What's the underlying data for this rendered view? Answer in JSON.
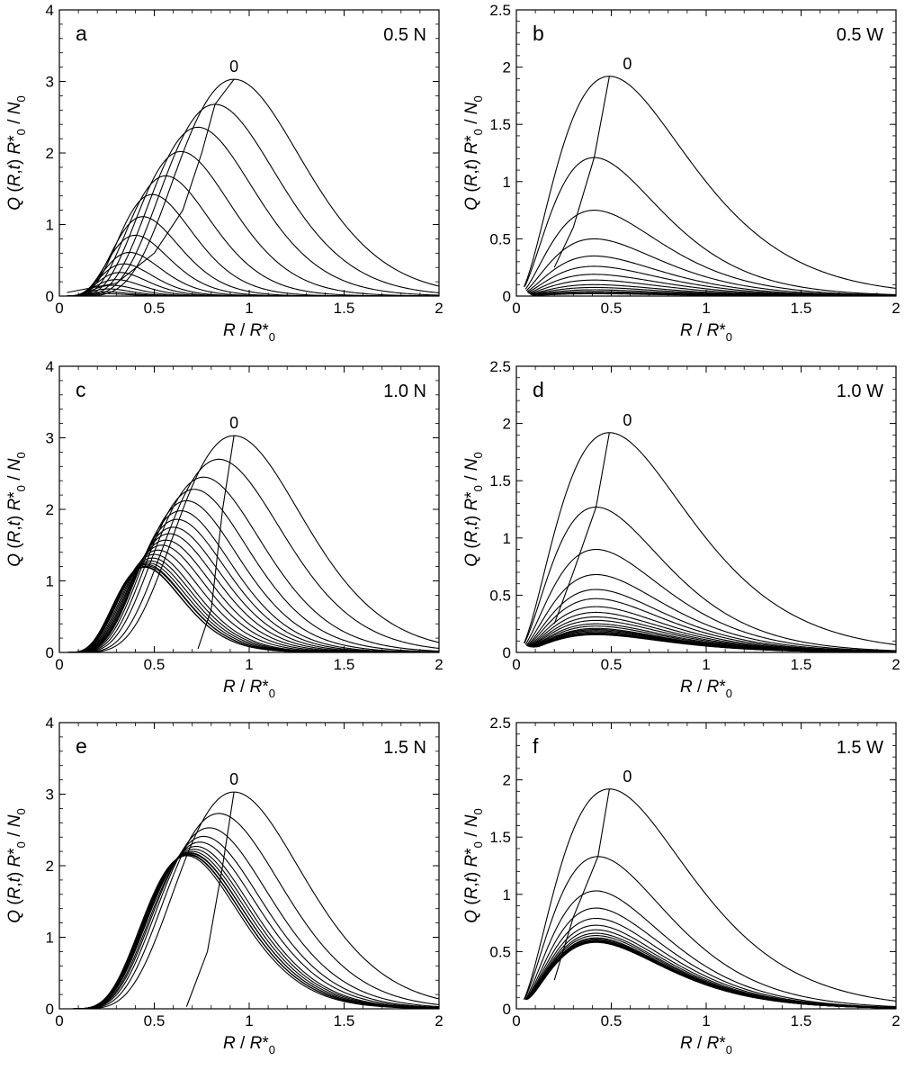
{
  "figure": {
    "x_axis_label": {
      "italic1": "R",
      "sep": " / ",
      "italic2": "R",
      "star": "*",
      "sub": "0"
    },
    "y_axis_label": {
      "Q": "Q",
      "open": " (",
      "R": "R",
      "comma": ",",
      "t": "t",
      "close": ") ",
      "Rstar": "R",
      "star": "*",
      "sub0": "0",
      "slash": " / ",
      "N": "N",
      "subN": "0"
    },
    "first_curve_label": "0"
  },
  "chart_data": [
    {
      "id": "a",
      "letter": "a",
      "condition": "0.5 N",
      "type": "line",
      "family": "N",
      "xlim": [
        0,
        2
      ],
      "ylim": [
        0,
        4
      ],
      "x_ticks": [
        0,
        0.5,
        1,
        1.5,
        2
      ],
      "x_tick_labels": [
        "0",
        "0.5",
        "1",
        "1.5",
        "2"
      ],
      "y_ticks": [
        0,
        1,
        2,
        3,
        4
      ],
      "y_tick_labels": [
        "0",
        "1",
        "2",
        "3",
        "4"
      ],
      "series_peaks": [
        {
          "peak_x": 0.92,
          "peak_y": 3.03
        },
        {
          "peak_x": 0.82,
          "peak_y": 2.68
        },
        {
          "peak_x": 0.73,
          "peak_y": 2.36
        },
        {
          "peak_x": 0.64,
          "peak_y": 2.02
        },
        {
          "peak_x": 0.56,
          "peak_y": 1.68
        },
        {
          "peak_x": 0.49,
          "peak_y": 1.42
        },
        {
          "peak_x": 0.44,
          "peak_y": 1.11
        },
        {
          "peak_x": 0.4,
          "peak_y": 0.85
        },
        {
          "peak_x": 0.37,
          "peak_y": 0.61
        },
        {
          "peak_x": 0.34,
          "peak_y": 0.45
        },
        {
          "peak_x": 0.32,
          "peak_y": 0.33
        },
        {
          "peak_x": 0.3,
          "peak_y": 0.23
        },
        {
          "peak_x": 0.28,
          "peak_y": 0.15
        },
        {
          "peak_x": 0.26,
          "peak_y": 0.1
        },
        {
          "peak_x": 0.25,
          "peak_y": 0.06
        },
        {
          "peak_x": 0.24,
          "peak_y": 0.035
        }
      ],
      "envelope": [
        [
          0.04,
          0.05
        ],
        [
          0.3,
          0.18
        ],
        [
          0.5,
          0.6
        ],
        [
          0.65,
          1.2
        ],
        [
          0.75,
          2.0
        ],
        [
          0.82,
          2.68
        ],
        [
          0.92,
          3.03
        ]
      ]
    },
    {
      "id": "b",
      "letter": "b",
      "condition": "0.5 W",
      "type": "line",
      "family": "W",
      "xlim": [
        0,
        2
      ],
      "ylim": [
        0,
        2.5
      ],
      "x_ticks": [
        0,
        0.5,
        1,
        1.5,
        2
      ],
      "x_tick_labels": [
        "0",
        "0.5",
        "1",
        "1.5",
        "2"
      ],
      "y_ticks": [
        0,
        0.5,
        1,
        1.5,
        2,
        2.5
      ],
      "y_tick_labels": [
        "0",
        "0.5",
        "1",
        "1.5",
        "2",
        "2.5"
      ],
      "series_peaks": [
        {
          "peak_x": 0.49,
          "peak_y": 1.92
        },
        {
          "peak_x": 0.41,
          "peak_y": 1.21
        },
        {
          "peak_x": 0.41,
          "peak_y": 0.75
        },
        {
          "peak_x": 0.41,
          "peak_y": 0.5
        },
        {
          "peak_x": 0.41,
          "peak_y": 0.35
        },
        {
          "peak_x": 0.41,
          "peak_y": 0.26
        },
        {
          "peak_x": 0.41,
          "peak_y": 0.19
        },
        {
          "peak_x": 0.41,
          "peak_y": 0.14
        },
        {
          "peak_x": 0.41,
          "peak_y": 0.1
        },
        {
          "peak_x": 0.41,
          "peak_y": 0.075
        },
        {
          "peak_x": 0.41,
          "peak_y": 0.055
        },
        {
          "peak_x": 0.41,
          "peak_y": 0.04
        },
        {
          "peak_x": 0.41,
          "peak_y": 0.03
        },
        {
          "peak_x": 0.41,
          "peak_y": 0.02
        }
      ],
      "envelope": [
        [
          0.2,
          0.25
        ],
        [
          0.3,
          0.6
        ],
        [
          0.41,
          1.21
        ],
        [
          0.49,
          1.92
        ]
      ]
    },
    {
      "id": "c",
      "letter": "c",
      "condition": "1.0 N",
      "type": "line",
      "family": "N",
      "xlim": [
        0,
        2
      ],
      "ylim": [
        0,
        4
      ],
      "x_ticks": [
        0,
        0.5,
        1,
        1.5,
        2
      ],
      "x_tick_labels": [
        "0",
        "0.5",
        "1",
        "1.5",
        "2"
      ],
      "y_ticks": [
        0,
        1,
        2,
        3,
        4
      ],
      "y_tick_labels": [
        "0",
        "1",
        "2",
        "3",
        "4"
      ],
      "series_peaks": [
        {
          "peak_x": 0.92,
          "peak_y": 3.03
        },
        {
          "peak_x": 0.84,
          "peak_y": 2.7
        },
        {
          "peak_x": 0.76,
          "peak_y": 2.45
        },
        {
          "peak_x": 0.71,
          "peak_y": 2.28
        },
        {
          "peak_x": 0.67,
          "peak_y": 2.12
        },
        {
          "peak_x": 0.64,
          "peak_y": 1.98
        },
        {
          "peak_x": 0.62,
          "peak_y": 1.86
        },
        {
          "peak_x": 0.6,
          "peak_y": 1.75
        },
        {
          "peak_x": 0.58,
          "peak_y": 1.66
        },
        {
          "peak_x": 0.56,
          "peak_y": 1.57
        },
        {
          "peak_x": 0.54,
          "peak_y": 1.5
        },
        {
          "peak_x": 0.52,
          "peak_y": 1.43
        },
        {
          "peak_x": 0.5,
          "peak_y": 1.37
        },
        {
          "peak_x": 0.49,
          "peak_y": 1.32
        },
        {
          "peak_x": 0.48,
          "peak_y": 1.28
        },
        {
          "peak_x": 0.47,
          "peak_y": 1.25
        },
        {
          "peak_x": 0.46,
          "peak_y": 1.23
        },
        {
          "peak_x": 0.46,
          "peak_y": 1.21
        },
        {
          "peak_x": 0.45,
          "peak_y": 1.2
        },
        {
          "peak_x": 0.45,
          "peak_y": 1.19
        }
      ],
      "envelope": [
        [
          0.73,
          0.05
        ],
        [
          0.8,
          0.6
        ],
        [
          0.86,
          2.0
        ],
        [
          0.92,
          3.03
        ]
      ]
    },
    {
      "id": "d",
      "letter": "d",
      "condition": "1.0 W",
      "type": "line",
      "family": "W",
      "xlim": [
        0,
        2
      ],
      "ylim": [
        0,
        2.5
      ],
      "x_ticks": [
        0,
        0.5,
        1,
        1.5,
        2
      ],
      "x_tick_labels": [
        "0",
        "0.5",
        "1",
        "1.5",
        "2"
      ],
      "y_ticks": [
        0,
        0.5,
        1,
        1.5,
        2,
        2.5
      ],
      "y_tick_labels": [
        "0",
        "0.5",
        "1",
        "1.5",
        "2",
        "2.5"
      ],
      "series_peaks": [
        {
          "peak_x": 0.49,
          "peak_y": 1.92
        },
        {
          "peak_x": 0.42,
          "peak_y": 1.27
        },
        {
          "peak_x": 0.42,
          "peak_y": 0.9
        },
        {
          "peak_x": 0.42,
          "peak_y": 0.68
        },
        {
          "peak_x": 0.42,
          "peak_y": 0.55
        },
        {
          "peak_x": 0.42,
          "peak_y": 0.47
        },
        {
          "peak_x": 0.42,
          "peak_y": 0.4
        },
        {
          "peak_x": 0.42,
          "peak_y": 0.35
        },
        {
          "peak_x": 0.42,
          "peak_y": 0.31
        },
        {
          "peak_x": 0.42,
          "peak_y": 0.28
        },
        {
          "peak_x": 0.42,
          "peak_y": 0.25
        },
        {
          "peak_x": 0.42,
          "peak_y": 0.23
        },
        {
          "peak_x": 0.42,
          "peak_y": 0.21
        },
        {
          "peak_x": 0.42,
          "peak_y": 0.2
        },
        {
          "peak_x": 0.42,
          "peak_y": 0.19
        },
        {
          "peak_x": 0.42,
          "peak_y": 0.18
        },
        {
          "peak_x": 0.42,
          "peak_y": 0.17
        },
        {
          "peak_x": 0.42,
          "peak_y": 0.165
        },
        {
          "peak_x": 0.42,
          "peak_y": 0.16
        },
        {
          "peak_x": 0.42,
          "peak_y": 0.155
        }
      ],
      "envelope": [
        [
          0.2,
          0.25
        ],
        [
          0.3,
          0.7
        ],
        [
          0.42,
          1.27
        ],
        [
          0.49,
          1.92
        ]
      ]
    },
    {
      "id": "e",
      "letter": "e",
      "condition": "1.5 N",
      "type": "line",
      "family": "N",
      "xlim": [
        0,
        2
      ],
      "ylim": [
        0,
        4
      ],
      "x_ticks": [
        0,
        0.5,
        1,
        1.5,
        2
      ],
      "x_tick_labels": [
        "0",
        "0.5",
        "1",
        "1.5",
        "2"
      ],
      "y_ticks": [
        0,
        1,
        2,
        3,
        4
      ],
      "y_tick_labels": [
        "0",
        "1",
        "2",
        "3",
        "4"
      ],
      "series_peaks": [
        {
          "peak_x": 0.92,
          "peak_y": 3.03
        },
        {
          "peak_x": 0.84,
          "peak_y": 2.73
        },
        {
          "peak_x": 0.79,
          "peak_y": 2.53
        },
        {
          "peak_x": 0.76,
          "peak_y": 2.41
        },
        {
          "peak_x": 0.74,
          "peak_y": 2.33
        },
        {
          "peak_x": 0.72,
          "peak_y": 2.27
        },
        {
          "peak_x": 0.71,
          "peak_y": 2.23
        },
        {
          "peak_x": 0.7,
          "peak_y": 2.2
        },
        {
          "peak_x": 0.69,
          "peak_y": 2.18
        },
        {
          "peak_x": 0.69,
          "peak_y": 2.17
        },
        {
          "peak_x": 0.68,
          "peak_y": 2.16
        },
        {
          "peak_x": 0.68,
          "peak_y": 2.15
        },
        {
          "peak_x": 0.68,
          "peak_y": 2.15
        },
        {
          "peak_x": 0.67,
          "peak_y": 2.14
        }
      ],
      "envelope": [
        [
          0.67,
          0.03
        ],
        [
          0.78,
          0.8
        ],
        [
          0.86,
          2.0
        ],
        [
          0.92,
          3.03
        ]
      ]
    },
    {
      "id": "f",
      "letter": "f",
      "condition": "1.5 W",
      "type": "line",
      "family": "W",
      "xlim": [
        0,
        2
      ],
      "ylim": [
        0,
        2.5
      ],
      "x_ticks": [
        0,
        0.5,
        1,
        1.5,
        2
      ],
      "x_tick_labels": [
        "0",
        "0.5",
        "1",
        "1.5",
        "2"
      ],
      "y_ticks": [
        0,
        0.5,
        1,
        1.5,
        2,
        2.5
      ],
      "y_tick_labels": [
        "0",
        "0.5",
        "1",
        "1.5",
        "2",
        "2.5"
      ],
      "series_peaks": [
        {
          "peak_x": 0.49,
          "peak_y": 1.92
        },
        {
          "peak_x": 0.43,
          "peak_y": 1.33
        },
        {
          "peak_x": 0.42,
          "peak_y": 1.03
        },
        {
          "peak_x": 0.42,
          "peak_y": 0.88
        },
        {
          "peak_x": 0.42,
          "peak_y": 0.79
        },
        {
          "peak_x": 0.42,
          "peak_y": 0.73
        },
        {
          "peak_x": 0.42,
          "peak_y": 0.69
        },
        {
          "peak_x": 0.42,
          "peak_y": 0.66
        },
        {
          "peak_x": 0.42,
          "peak_y": 0.64
        },
        {
          "peak_x": 0.42,
          "peak_y": 0.62
        },
        {
          "peak_x": 0.42,
          "peak_y": 0.61
        },
        {
          "peak_x": 0.42,
          "peak_y": 0.6
        },
        {
          "peak_x": 0.42,
          "peak_y": 0.595
        },
        {
          "peak_x": 0.42,
          "peak_y": 0.59
        },
        {
          "peak_x": 0.42,
          "peak_y": 0.585
        },
        {
          "peak_x": 0.42,
          "peak_y": 0.58
        }
      ],
      "envelope": [
        [
          0.2,
          0.25
        ],
        [
          0.3,
          0.8
        ],
        [
          0.43,
          1.33
        ],
        [
          0.49,
          1.92
        ]
      ]
    }
  ]
}
